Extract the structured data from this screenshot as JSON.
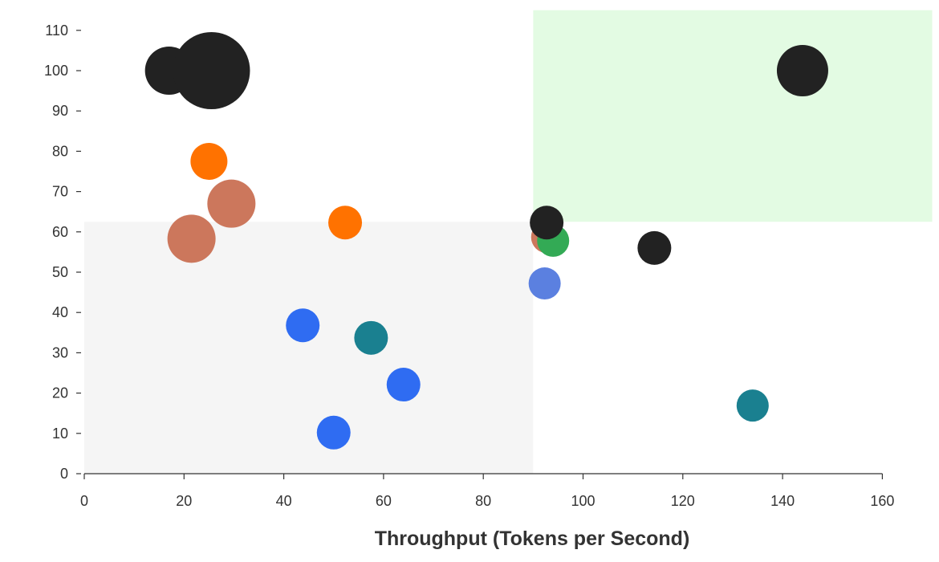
{
  "chart_data": {
    "type": "scatter",
    "xlabel": "Throughput (Tokens per Second)",
    "ylabel": "",
    "xlim": [
      0,
      170
    ],
    "ylim": [
      0,
      115
    ],
    "x_ticks": [
      "0",
      "20",
      "40",
      "60",
      "80",
      "100",
      "120",
      "140",
      "160"
    ],
    "y_ticks": [
      "0",
      "10",
      "20",
      "30",
      "40",
      "50",
      "60",
      "70",
      "80",
      "90",
      "100",
      "110"
    ],
    "regions": [
      {
        "x": [
          0,
          90
        ],
        "y": [
          0,
          62.5
        ],
        "color": "#f5f5f5"
      },
      {
        "x": [
          90,
          170
        ],
        "y": [
          62.5,
          115
        ],
        "color": "#e3fbe3"
      }
    ],
    "points": [
      {
        "x": 17,
        "y": 100,
        "size": 30,
        "color": "#222222"
      },
      {
        "x": 25.5,
        "y": 100,
        "size": 48,
        "color": "#222222"
      },
      {
        "x": 144,
        "y": 100,
        "size": 32,
        "color": "#222222"
      },
      {
        "x": 25,
        "y": 77.5,
        "size": 23,
        "color": "#ff7200"
      },
      {
        "x": 29.5,
        "y": 67,
        "size": 30,
        "color": "#cc775c"
      },
      {
        "x": 21.5,
        "y": 58.3,
        "size": 30,
        "color": "#cc775c"
      },
      {
        "x": 52.3,
        "y": 62.3,
        "size": 21,
        "color": "#ff7200"
      },
      {
        "x": 92.8,
        "y": 58.7,
        "size": 20,
        "color": "#cc775c"
      },
      {
        "x": 94,
        "y": 57.8,
        "size": 20,
        "color": "#33aa55"
      },
      {
        "x": 92.7,
        "y": 62.3,
        "size": 21,
        "color": "#222222"
      },
      {
        "x": 114.3,
        "y": 56,
        "size": 21,
        "color": "#222222"
      },
      {
        "x": 92.3,
        "y": 47.2,
        "size": 20,
        "color": "#5b80e0"
      },
      {
        "x": 43.8,
        "y": 36.8,
        "size": 21,
        "color": "#2f6cf2"
      },
      {
        "x": 57.5,
        "y": 33.7,
        "size": 21,
        "color": "#1a8090"
      },
      {
        "x": 64,
        "y": 22.1,
        "size": 21,
        "color": "#2f6cf2"
      },
      {
        "x": 50,
        "y": 10.2,
        "size": 21,
        "color": "#2f6cf2"
      },
      {
        "x": 134,
        "y": 16.9,
        "size": 20,
        "color": "#1a8090"
      }
    ]
  }
}
